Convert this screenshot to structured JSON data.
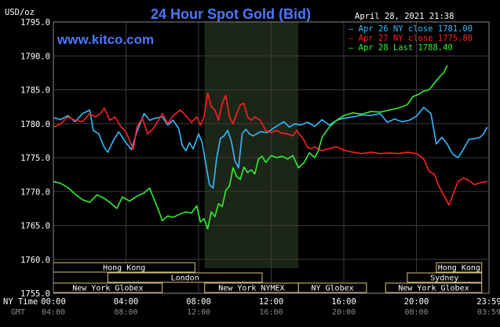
{
  "header": {
    "title": "24 Hour Spot Gold (Bid)",
    "website": "www.kitco.com",
    "timestamp": "April 28, 2021 21:38",
    "yunit": "USD/oz"
  },
  "legend": [
    {
      "label": "Apr 26 NY close 1781.00",
      "color": "#33bbff"
    },
    {
      "label": "Apr 27 NY close 1775.80",
      "color": "#ff2020"
    },
    {
      "label": "Apr 28 Last 1788.40",
      "color": "#33ee33"
    }
  ],
  "sessions": [
    {
      "label": "Hong Kong",
      "row": 0,
      "start": 0,
      "end": 7.8
    },
    {
      "label": "Hong Kong",
      "row": 0,
      "start": 21.1,
      "end": 23.6
    },
    {
      "label": "London",
      "row": 1,
      "start": 3,
      "end": 11.5
    },
    {
      "label": "Sydney",
      "row": 1,
      "start": 19.5,
      "end": 23.6
    },
    {
      "label": "New York Globex",
      "row": 2,
      "start": 0,
      "end": 6
    },
    {
      "label": "New York NYMEX",
      "row": 2,
      "start": 8.33,
      "end": 13.5
    },
    {
      "label": "NY Globex",
      "row": 2,
      "start": 13.5,
      "end": 17.25
    },
    {
      "label": "New York Globex",
      "row": 2,
      "start": 18.3,
      "end": 23.6
    }
  ],
  "axis_labels": {
    "ny_time": "NY Time",
    "gmt": "GMT"
  },
  "colors": {
    "background": "#000000",
    "plot_bg": "#000000",
    "shade": "#1c2618",
    "grid": "#3a3a3a",
    "session_box": "#d9c27a"
  },
  "chart_data": {
    "type": "line",
    "title": "24 Hour Spot Gold (Bid)",
    "ylabel": "USD/oz",
    "ylim": [
      1755,
      1795
    ],
    "yticks": [
      1755,
      1760,
      1765,
      1770,
      1775,
      1780,
      1785,
      1790,
      1795
    ],
    "xlim": [
      0,
      24
    ],
    "shaded_range": [
      8.33,
      13.5
    ],
    "xticks": [
      {
        "at": 0,
        "ny": "00:00",
        "gmt": "04:00"
      },
      {
        "at": 4,
        "ny": "04:00",
        "gmt": "08:00"
      },
      {
        "at": 8,
        "ny": "08:00",
        "gmt": "12:00"
      },
      {
        "at": 12,
        "ny": "12:00",
        "gmt": "16:00"
      },
      {
        "at": 16,
        "ny": "16:00",
        "gmt": "20:00"
      },
      {
        "at": 20,
        "ny": "20:00",
        "gmt": "00:00"
      },
      {
        "at": 24,
        "ny": "23:59",
        "gmt": "03:59"
      }
    ],
    "series": [
      {
        "name": "Apr 26 NY close 1781.00",
        "color": "#33bbff",
        "points": [
          [
            0,
            1780.9
          ],
          [
            0.4,
            1780.6
          ],
          [
            0.8,
            1781.2
          ],
          [
            1.2,
            1780.3
          ],
          [
            1.6,
            1781.5
          ],
          [
            2,
            1782
          ],
          [
            2.2,
            1779
          ],
          [
            2.5,
            1778.5
          ],
          [
            2.8,
            1776.5
          ],
          [
            3.0,
            1775.8
          ],
          [
            3.3,
            1777.5
          ],
          [
            3.6,
            1778.8
          ],
          [
            3.8,
            1778
          ],
          [
            4.0,
            1777.2
          ],
          [
            4.3,
            1776.2
          ],
          [
            4.6,
            1778.8
          ],
          [
            5,
            1781.5
          ],
          [
            5.3,
            1780.5
          ],
          [
            5.6,
            1780.8
          ],
          [
            6,
            1781
          ],
          [
            6.3,
            1779.8
          ],
          [
            6.6,
            1780.5
          ],
          [
            6.9,
            1779.3
          ],
          [
            7.1,
            1776.8
          ],
          [
            7.3,
            1776
          ],
          [
            7.5,
            1777.2
          ],
          [
            7.7,
            1776.3
          ],
          [
            8,
            1778.5
          ],
          [
            8.2,
            1777.2
          ],
          [
            8.4,
            1774
          ],
          [
            8.6,
            1771
          ],
          [
            8.8,
            1770.5
          ],
          [
            9,
            1775
          ],
          [
            9.2,
            1777.8
          ],
          [
            9.4,
            1778.2
          ],
          [
            9.6,
            1779
          ],
          [
            9.8,
            1777.5
          ],
          [
            10,
            1774.5
          ],
          [
            10.2,
            1773.5
          ],
          [
            10.4,
            1778.5
          ],
          [
            10.6,
            1779.2
          ],
          [
            10.8,
            1778.5
          ],
          [
            11,
            1778.2
          ],
          [
            11.4,
            1778.8
          ],
          [
            11.8,
            1778.7
          ],
          [
            12.1,
            1779.3
          ],
          [
            12.4,
            1779.8
          ],
          [
            12.7,
            1780.3
          ],
          [
            13,
            1779.5
          ],
          [
            13.3,
            1780
          ],
          [
            13.6,
            1779.8
          ],
          [
            14,
            1780.2
          ],
          [
            14.4,
            1779.6
          ],
          [
            14.8,
            1780.6
          ],
          [
            15.2,
            1779.8
          ],
          [
            15.6,
            1780.5
          ],
          [
            16,
            1780.8
          ],
          [
            16.5,
            1781
          ],
          [
            17,
            1781.3
          ],
          [
            17.5,
            1781.2
          ],
          [
            18,
            1781.5
          ],
          [
            18.4,
            1780.2
          ],
          [
            18.8,
            1780.7
          ],
          [
            19.2,
            1780.3
          ],
          [
            19.6,
            1780.5
          ],
          [
            20,
            1781.1
          ],
          [
            20.4,
            1782.4
          ],
          [
            20.8,
            1781.5
          ],
          [
            21.1,
            1777
          ],
          [
            21.4,
            1778
          ],
          [
            21.7,
            1777
          ],
          [
            22,
            1775.5
          ],
          [
            22.3,
            1775
          ],
          [
            22.6,
            1776.3
          ],
          [
            22.9,
            1777.7
          ],
          [
            23.2,
            1777.8
          ],
          [
            23.5,
            1778
          ],
          [
            23.7,
            1778.5
          ],
          [
            23.9,
            1779.5
          ]
        ]
      },
      {
        "name": "Apr 27 NY close 1775.80",
        "color": "#ff2020",
        "points": [
          [
            0,
            1779.5
          ],
          [
            0.4,
            1780
          ],
          [
            0.8,
            1781
          ],
          [
            1.2,
            1780.5
          ],
          [
            1.6,
            1780.3
          ],
          [
            2,
            1781.5
          ],
          [
            2.3,
            1781
          ],
          [
            2.6,
            1781.5
          ],
          [
            2.8,
            1782.3
          ],
          [
            3.1,
            1780.5
          ],
          [
            3.4,
            1781
          ],
          [
            3.7,
            1779.6
          ],
          [
            4,
            1778.8
          ],
          [
            4.2,
            1777.5
          ],
          [
            4.4,
            1776.2
          ],
          [
            4.6,
            1779.5
          ],
          [
            4.9,
            1780.8
          ],
          [
            5.2,
            1778.5
          ],
          [
            5.5,
            1779.3
          ],
          [
            5.8,
            1780.5
          ],
          [
            6,
            1781.5
          ],
          [
            6.3,
            1780
          ],
          [
            6.6,
            1781.2
          ],
          [
            7,
            1782
          ],
          [
            7.3,
            1781.2
          ],
          [
            7.6,
            1780.2
          ],
          [
            7.9,
            1781
          ],
          [
            8.1,
            1779.8
          ],
          [
            8.3,
            1781
          ],
          [
            8.5,
            1784.5
          ],
          [
            8.7,
            1782.5
          ],
          [
            8.9,
            1782
          ],
          [
            9.1,
            1780.5
          ],
          [
            9.3,
            1783
          ],
          [
            9.5,
            1784.2
          ],
          [
            9.7,
            1781
          ],
          [
            9.9,
            1780
          ],
          [
            10.1,
            1781.5
          ],
          [
            10.3,
            1782.8
          ],
          [
            10.5,
            1783
          ],
          [
            10.7,
            1781
          ],
          [
            10.9,
            1780.5
          ],
          [
            11.1,
            1781
          ],
          [
            11.4,
            1780.5
          ],
          [
            11.7,
            1779
          ],
          [
            12,
            1778.7
          ],
          [
            12.3,
            1779
          ],
          [
            12.6,
            1778.6
          ],
          [
            12.9,
            1778.5
          ],
          [
            13.2,
            1778.2
          ],
          [
            13.4,
            1779
          ],
          [
            13.6,
            1778.3
          ],
          [
            13.8,
            1777.6
          ],
          [
            14,
            1776.5
          ],
          [
            14.2,
            1776.3
          ],
          [
            14.4,
            1776.6
          ],
          [
            14.6,
            1776.3
          ],
          [
            14.8,
            1776
          ],
          [
            15,
            1776.2
          ],
          [
            15.3,
            1776.4
          ],
          [
            15.6,
            1776.6
          ],
          [
            16,
            1776.1
          ],
          [
            16.5,
            1775.8
          ],
          [
            17,
            1775.6
          ],
          [
            17.5,
            1775.8
          ],
          [
            18,
            1775.6
          ],
          [
            18.5,
            1775.7
          ],
          [
            19,
            1775.6
          ],
          [
            19.5,
            1775.8
          ],
          [
            20,
            1775.6
          ],
          [
            20.4,
            1774.8
          ],
          [
            20.7,
            1773
          ],
          [
            21,
            1772.5
          ],
          [
            21.2,
            1771
          ],
          [
            21.4,
            1770
          ],
          [
            21.6,
            1769
          ],
          [
            21.8,
            1768
          ],
          [
            22,
            1769.5
          ],
          [
            22.3,
            1771.5
          ],
          [
            22.6,
            1772
          ],
          [
            22.9,
            1771.6
          ],
          [
            23.2,
            1771
          ],
          [
            23.5,
            1771.3
          ],
          [
            23.9,
            1771.5
          ]
        ]
      },
      {
        "name": "Apr 28 Last 1788.40",
        "color": "#33ee33",
        "points": [
          [
            0,
            1771.5
          ],
          [
            0.4,
            1771.2
          ],
          [
            0.8,
            1770.6
          ],
          [
            1.2,
            1769.6
          ],
          [
            1.6,
            1768.8
          ],
          [
            2,
            1768.4
          ],
          [
            2.4,
            1769.5
          ],
          [
            2.8,
            1769
          ],
          [
            3.2,
            1768.2
          ],
          [
            3.5,
            1767.5
          ],
          [
            3.8,
            1769.2
          ],
          [
            4.2,
            1768.6
          ],
          [
            4.6,
            1769.3
          ],
          [
            5,
            1769.8
          ],
          [
            5.3,
            1770.5
          ],
          [
            5.6,
            1768.5
          ],
          [
            5.8,
            1767.2
          ],
          [
            6,
            1765.7
          ],
          [
            6.3,
            1766.4
          ],
          [
            6.6,
            1766.2
          ],
          [
            7,
            1766.7
          ],
          [
            7.3,
            1767
          ],
          [
            7.6,
            1766.8
          ],
          [
            7.9,
            1767.9
          ],
          [
            8.1,
            1765.5
          ],
          [
            8.3,
            1766
          ],
          [
            8.5,
            1764.5
          ],
          [
            8.7,
            1767
          ],
          [
            8.9,
            1766.3
          ],
          [
            9.1,
            1768.2
          ],
          [
            9.3,
            1767.8
          ],
          [
            9.5,
            1770.2
          ],
          [
            9.7,
            1770.8
          ],
          [
            9.9,
            1773.5
          ],
          [
            10.1,
            1772.2
          ],
          [
            10.3,
            1771.8
          ],
          [
            10.5,
            1773.6
          ],
          [
            10.7,
            1772.8
          ],
          [
            10.9,
            1773.2
          ],
          [
            11.1,
            1772.6
          ],
          [
            11.3,
            1774.8
          ],
          [
            11.5,
            1775.2
          ],
          [
            11.7,
            1774.3
          ],
          [
            12,
            1775.3
          ],
          [
            12.3,
            1775
          ],
          [
            12.6,
            1775.2
          ],
          [
            12.9,
            1774.8
          ],
          [
            13.2,
            1775.3
          ],
          [
            13.5,
            1773.5
          ],
          [
            13.8,
            1774.2
          ],
          [
            14.1,
            1775.7
          ],
          [
            14.4,
            1775
          ],
          [
            14.6,
            1776
          ],
          [
            14.8,
            1778
          ],
          [
            15.2,
            1779.5
          ],
          [
            15.6,
            1780.5
          ],
          [
            16,
            1781.2
          ],
          [
            16.5,
            1781.6
          ],
          [
            17,
            1781.4
          ],
          [
            17.5,
            1781.8
          ],
          [
            18,
            1781.7
          ],
          [
            18.5,
            1782
          ],
          [
            19,
            1782.3
          ],
          [
            19.5,
            1782.8
          ],
          [
            19.8,
            1784
          ],
          [
            20.1,
            1784.3
          ],
          [
            20.4,
            1784.8
          ],
          [
            20.7,
            1785
          ],
          [
            21,
            1786
          ],
          [
            21.3,
            1787
          ],
          [
            21.5,
            1787.5
          ],
          [
            21.7,
            1788.6
          ]
        ]
      }
    ]
  }
}
